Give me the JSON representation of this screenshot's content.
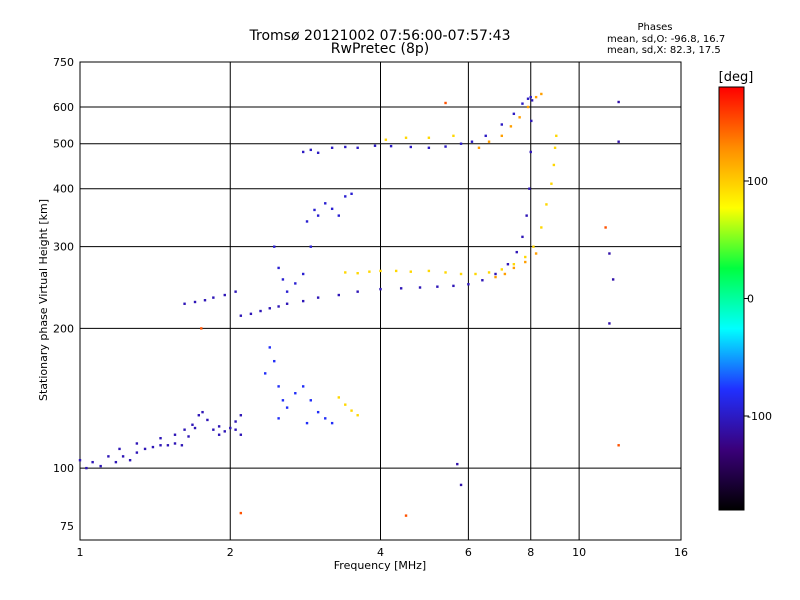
{
  "chart_data": {
    "type": "scatter",
    "title": "Tromsø 20121002 07:56:00-07:57:43",
    "subtitle": "RwPretec (8p)",
    "xlabel": "Frequency [MHz]",
    "ylabel": "Stationary phase Virtual Height [km]",
    "x_scale": "log",
    "y_scale": "log",
    "xlim": [
      1,
      16
    ],
    "ylim": [
      70,
      750
    ],
    "x_ticks": [
      1,
      2,
      4,
      6,
      8,
      10,
      16
    ],
    "y_ticks": [
      75,
      100,
      200,
      300,
      400,
      500,
      600,
      750
    ],
    "grid": true,
    "info": {
      "heading": "Phases",
      "line_o": "mean, sd,O: -96.8, 16.7",
      "line_x": "mean, sd,X:  82.3, 17.5"
    },
    "colorbar": {
      "label": "[deg]",
      "range": [
        -180,
        180
      ],
      "ticks": [
        100,
        0,
        -100
      ],
      "colors": [
        "#000000",
        "#3a007a",
        "#2030ff",
        "#00ffff",
        "#00ff40",
        "#ffff00",
        "#ff8c00",
        "#ff0000"
      ]
    },
    "series": [
      {
        "name": "",
        "phase": -105,
        "points": [
          [
            1.0,
            104
          ],
          [
            1.03,
            100
          ],
          [
            1.06,
            103
          ],
          [
            1.1,
            101
          ],
          [
            1.14,
            106
          ],
          [
            1.18,
            103
          ],
          [
            1.22,
            106
          ],
          [
            1.26,
            104
          ],
          [
            1.3,
            108
          ],
          [
            1.35,
            110
          ],
          [
            1.4,
            111
          ],
          [
            1.45,
            112
          ],
          [
            1.5,
            112
          ],
          [
            1.55,
            113
          ],
          [
            1.6,
            112
          ],
          [
            1.65,
            117
          ],
          [
            1.7,
            122
          ],
          [
            1.73,
            130
          ],
          [
            1.76,
            132
          ],
          [
            1.8,
            127
          ],
          [
            1.85,
            121
          ],
          [
            1.9,
            118
          ],
          [
            1.95,
            120
          ],
          [
            2.0,
            122
          ],
          [
            2.05,
            121
          ],
          [
            2.1,
            118
          ],
          [
            1.2,
            110
          ],
          [
            1.3,
            113
          ],
          [
            1.45,
            116
          ],
          [
            1.55,
            118
          ],
          [
            1.62,
            121
          ],
          [
            1.68,
            124
          ],
          [
            1.9,
            123
          ],
          [
            2.05,
            126
          ],
          [
            2.1,
            130
          ]
        ]
      },
      {
        "name": "",
        "phase": -105,
        "points": [
          [
            1.62,
            226
          ],
          [
            1.7,
            228
          ],
          [
            1.78,
            230
          ],
          [
            1.85,
            233
          ],
          [
            1.95,
            236
          ],
          [
            2.05,
            240
          ],
          [
            2.1,
            213
          ],
          [
            2.2,
            215
          ],
          [
            2.3,
            218
          ],
          [
            2.4,
            221
          ],
          [
            2.5,
            223
          ],
          [
            2.6,
            226
          ],
          [
            2.8,
            229
          ],
          [
            3.0,
            233
          ],
          [
            3.3,
            236
          ],
          [
            3.6,
            240
          ],
          [
            4.0,
            243
          ],
          [
            4.4,
            244
          ],
          [
            4.8,
            245
          ],
          [
            5.2,
            246
          ],
          [
            5.6,
            247
          ],
          [
            6.0,
            249
          ],
          [
            6.4,
            254
          ],
          [
            6.8,
            262
          ],
          [
            7.2,
            275
          ],
          [
            7.5,
            292
          ],
          [
            7.7,
            315
          ],
          [
            7.85,
            350
          ],
          [
            7.95,
            400
          ],
          [
            8.0,
            480
          ],
          [
            8.02,
            560
          ],
          [
            8.05,
            620
          ]
        ]
      },
      {
        "name": "",
        "phase": -95,
        "points": [
          [
            2.45,
            300
          ],
          [
            2.5,
            270
          ],
          [
            2.55,
            255
          ],
          [
            2.6,
            240
          ],
          [
            2.7,
            250
          ],
          [
            2.8,
            262
          ],
          [
            2.9,
            300
          ],
          [
            3.0,
            350
          ],
          [
            3.1,
            372
          ],
          [
            3.2,
            362
          ],
          [
            3.4,
            385
          ],
          [
            3.5,
            390
          ],
          [
            3.3,
            350
          ],
          [
            2.95,
            360
          ],
          [
            2.85,
            340
          ]
        ]
      },
      {
        "name": "",
        "phase": -100,
        "points": [
          [
            2.8,
            480
          ],
          [
            2.9,
            485
          ],
          [
            3.0,
            478
          ],
          [
            3.2,
            490
          ],
          [
            3.4,
            492
          ],
          [
            3.6,
            490
          ],
          [
            3.9,
            495
          ],
          [
            4.2,
            494
          ],
          [
            4.6,
            492
          ],
          [
            5.0,
            490
          ],
          [
            5.4,
            493
          ],
          [
            5.8,
            500
          ],
          [
            6.1,
            505
          ],
          [
            6.5,
            520
          ],
          [
            7.0,
            550
          ],
          [
            7.4,
            580
          ],
          [
            7.7,
            610
          ],
          [
            7.9,
            625
          ],
          [
            8.0,
            630
          ]
        ]
      },
      {
        "name": "",
        "phase": -80,
        "points": [
          [
            2.35,
            160
          ],
          [
            2.4,
            182
          ],
          [
            2.45,
            170
          ],
          [
            2.5,
            150
          ],
          [
            2.55,
            140
          ],
          [
            2.6,
            135
          ],
          [
            2.7,
            145
          ],
          [
            2.8,
            150
          ],
          [
            2.9,
            140
          ],
          [
            3.0,
            132
          ],
          [
            3.1,
            128
          ],
          [
            3.2,
            125
          ],
          [
            2.85,
            125
          ],
          [
            2.5,
            128
          ]
        ]
      },
      {
        "name": "",
        "phase": 95,
        "points": [
          [
            3.4,
            264
          ],
          [
            3.6,
            263
          ],
          [
            3.8,
            265
          ],
          [
            4.0,
            266
          ],
          [
            4.3,
            266
          ],
          [
            4.6,
            265
          ],
          [
            5.0,
            266
          ],
          [
            5.4,
            264
          ],
          [
            5.8,
            262
          ],
          [
            6.2,
            262
          ],
          [
            6.6,
            264
          ],
          [
            7.0,
            268
          ],
          [
            7.4,
            275
          ],
          [
            7.8,
            285
          ],
          [
            8.1,
            300
          ],
          [
            8.4,
            330
          ],
          [
            8.6,
            370
          ],
          [
            8.8,
            410
          ],
          [
            8.9,
            450
          ],
          [
            8.95,
            490
          ],
          [
            9.0,
            520
          ],
          [
            4.1,
            510
          ],
          [
            4.5,
            515
          ],
          [
            5.0,
            515
          ],
          [
            5.6,
            520
          ],
          [
            3.3,
            142
          ],
          [
            3.4,
            137
          ],
          [
            3.5,
            133
          ],
          [
            3.6,
            130
          ]
        ]
      },
      {
        "name": "",
        "phase": 120,
        "points": [
          [
            6.3,
            490
          ],
          [
            6.6,
            505
          ],
          [
            7.0,
            520
          ],
          [
            7.3,
            545
          ],
          [
            7.6,
            570
          ],
          [
            7.9,
            600
          ],
          [
            8.2,
            630
          ],
          [
            8.4,
            640
          ],
          [
            6.8,
            258
          ],
          [
            7.1,
            262
          ],
          [
            7.4,
            270
          ],
          [
            7.8,
            278
          ],
          [
            8.2,
            290
          ]
        ]
      },
      {
        "name": "",
        "phase": -110,
        "points": [
          [
            12.0,
            615
          ],
          [
            12.0,
            505
          ],
          [
            11.5,
            290
          ],
          [
            11.7,
            255
          ],
          [
            11.5,
            205
          ],
          [
            5.7,
            102
          ],
          [
            5.8,
            92
          ]
        ]
      },
      {
        "name": "",
        "phase": 150,
        "points": [
          [
            5.4,
            612
          ],
          [
            2.1,
            80
          ],
          [
            4.5,
            79
          ],
          [
            12.0,
            112
          ],
          [
            11.3,
            330
          ],
          [
            1.75,
            200
          ]
        ]
      }
    ]
  }
}
